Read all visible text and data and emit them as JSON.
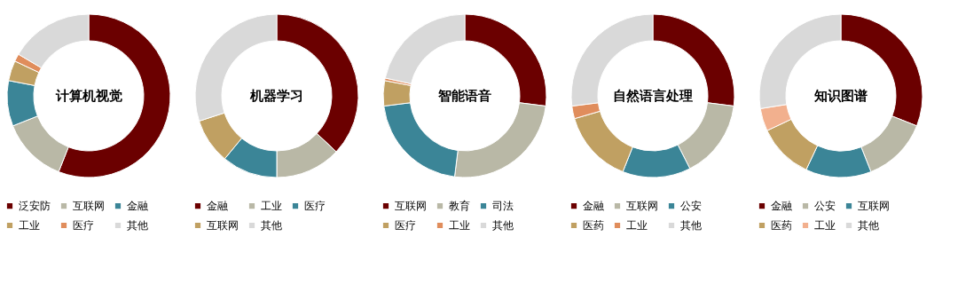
{
  "chart_data": [
    {
      "type": "donut",
      "title": "计算机视觉",
      "categories": [
        "泛安防",
        "互联网",
        "金融",
        "工业",
        "医疗",
        "其他"
      ],
      "values": [
        56,
        13,
        9,
        4,
        1.5,
        16.5
      ],
      "colors": [
        "#6b0000",
        "#b9b8a6",
        "#3b8597",
        "#c0a062",
        "#e08d5c",
        "#d9d9d9"
      ],
      "legend": "bottom"
    },
    {
      "type": "donut",
      "title": "机器学习",
      "categories": [
        "金融",
        "工业",
        "医疗",
        "互联网",
        "其他"
      ],
      "values": [
        37,
        13,
        11,
        9,
        30
      ],
      "colors": [
        "#6b0000",
        "#b9b8a6",
        "#3b8597",
        "#c0a062",
        "#d9d9d9"
      ],
      "legend": "bottom"
    },
    {
      "type": "donut",
      "title": "智能语音",
      "categories": [
        "互联网",
        "教育",
        "司法",
        "医疗",
        "工业",
        "其他"
      ],
      "values": [
        27,
        25,
        21,
        5,
        0.5,
        21.5
      ],
      "colors": [
        "#6b0000",
        "#b9b8a6",
        "#3b8597",
        "#c0a062",
        "#e08d5c",
        "#d9d9d9"
      ],
      "legend": "bottom"
    },
    {
      "type": "donut",
      "title": "自然语言处理",
      "categories": [
        "金融",
        "互联网",
        "公安",
        "医药",
        "工业",
        "其他"
      ],
      "values": [
        27,
        15.5,
        13.5,
        14.5,
        2.5,
        27
      ],
      "colors": [
        "#6b0000",
        "#b9b8a6",
        "#3b8597",
        "#c0a062",
        "#e08d5c",
        "#d9d9d9"
      ],
      "legend": "bottom"
    },
    {
      "type": "donut",
      "title": "知识图谱",
      "categories": [
        "金融",
        "公安",
        "互联网",
        "医药",
        "工业",
        "其他"
      ],
      "values": [
        31,
        13,
        13,
        11,
        4.5,
        27.5
      ],
      "colors": [
        "#6b0000",
        "#b9b8a6",
        "#3b8597",
        "#c0a062",
        "#f2b08e",
        "#d9d9d9"
      ],
      "legend": "bottom"
    }
  ]
}
